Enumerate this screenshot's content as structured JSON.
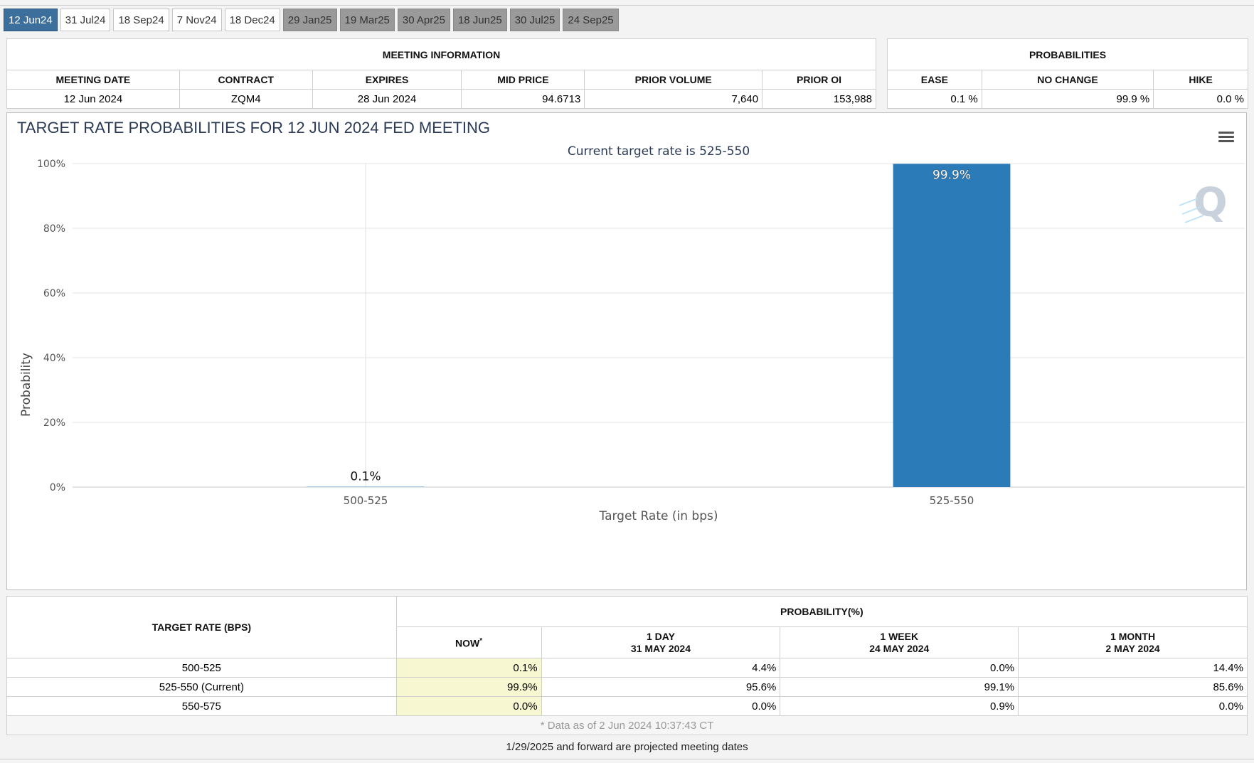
{
  "tabs": [
    {
      "label": "12 Jun24",
      "state": "active"
    },
    {
      "label": "31 Jul24",
      "state": "normal"
    },
    {
      "label": "18 Sep24",
      "state": "normal"
    },
    {
      "label": "7 Nov24",
      "state": "normal"
    },
    {
      "label": "18 Dec24",
      "state": "normal"
    },
    {
      "label": "29 Jan25",
      "state": "projected"
    },
    {
      "label": "19 Mar25",
      "state": "projected"
    },
    {
      "label": "30 Apr25",
      "state": "projected"
    },
    {
      "label": "18 Jun25",
      "state": "projected"
    },
    {
      "label": "30 Jul25",
      "state": "projected"
    },
    {
      "label": "24 Sep25",
      "state": "projected"
    }
  ],
  "meeting_info": {
    "title": "MEETING INFORMATION",
    "headers": [
      "MEETING DATE",
      "CONTRACT",
      "EXPIRES",
      "MID PRICE",
      "PRIOR VOLUME",
      "PRIOR OI"
    ],
    "values": [
      "12 Jun 2024",
      "ZQM4",
      "28 Jun 2024",
      "94.6713",
      "7,640",
      "153,988"
    ]
  },
  "probabilities": {
    "title": "PROBABILITIES",
    "headers": [
      "EASE",
      "NO CHANGE",
      "HIKE"
    ],
    "values": [
      "0.1 %",
      "99.9 %",
      "0.0 %"
    ]
  },
  "chart_data": {
    "type": "bar",
    "title": "TARGET RATE PROBABILITIES FOR 12 JUN 2024 FED MEETING",
    "subtitle": "Current target rate is 525-550",
    "xlabel": "Target Rate (in bps)",
    "ylabel": "Probability",
    "categories": [
      "500-525",
      "525-550"
    ],
    "values": [
      0.1,
      99.9
    ],
    "data_labels": [
      "0.1%",
      "99.9%"
    ],
    "yticks": [
      "0%",
      "20%",
      "40%",
      "60%",
      "80%",
      "100%"
    ],
    "ylim": [
      0,
      100
    ],
    "bar_color": "#2b7bb9",
    "grid": true,
    "menu_icon": "hamburger-menu-icon",
    "watermark": "Q"
  },
  "rate_table": {
    "header_rate": "TARGET RATE (BPS)",
    "header_prob": "PROBABILITY(%)",
    "cols": [
      {
        "line1": "NOW",
        "line2": "",
        "sup": "*"
      },
      {
        "line1": "1 DAY",
        "line2": "31 MAY 2024",
        "sup": ""
      },
      {
        "line1": "1 WEEK",
        "line2": "24 MAY 2024",
        "sup": ""
      },
      {
        "line1": "1 MONTH",
        "line2": "2 MAY 2024",
        "sup": ""
      }
    ],
    "rows": [
      {
        "rate": "500-525",
        "values": [
          "0.1%",
          "4.4%",
          "0.0%",
          "14.4%"
        ]
      },
      {
        "rate": "525-550 (Current)",
        "values": [
          "99.9%",
          "95.6%",
          "99.1%",
          "85.6%"
        ]
      },
      {
        "rate": "550-575",
        "values": [
          "0.0%",
          "0.0%",
          "0.9%",
          "0.0%"
        ]
      }
    ],
    "note": "* Data as of 2 Jun 2024 10:37:43 CT"
  },
  "footer": "1/29/2025 and forward are projected meeting dates"
}
